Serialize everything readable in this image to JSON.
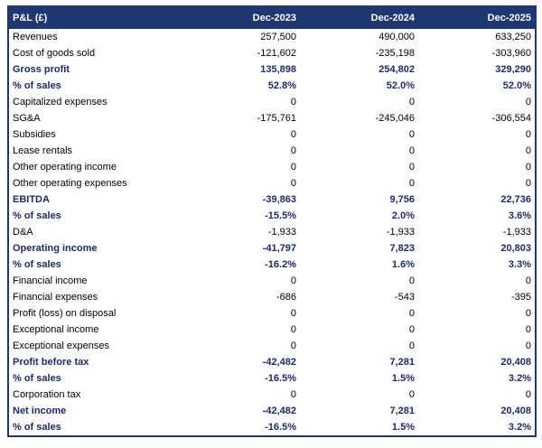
{
  "table": {
    "header": [
      "P&L (£)",
      "Dec-2023",
      "Dec-2024",
      "Dec-2025"
    ],
    "rows": [
      {
        "cells": [
          "Revenues",
          "257,500",
          "490,000",
          "633,250"
        ]
      },
      {
        "cells": [
          "Cost of goods sold",
          "-121,602",
          "-235,198",
          "-303,960"
        ]
      },
      {
        "cells": [
          "Gross profit",
          "135,898",
          "254,802",
          "329,290"
        ],
        "bold": true
      },
      {
        "cells": [
          "% of sales",
          "52.8%",
          "52.0%",
          "52.0%"
        ],
        "bold": true
      },
      {
        "cells": [
          "Capitalized expenses",
          "0",
          "0",
          "0"
        ]
      },
      {
        "cells": [
          "SG&A",
          "-175,761",
          "-245,046",
          "-306,554"
        ]
      },
      {
        "cells": [
          "Subsidies",
          "0",
          "0",
          "0"
        ]
      },
      {
        "cells": [
          "Lease rentals",
          "0",
          "0",
          "0"
        ]
      },
      {
        "cells": [
          "Other operating income",
          "0",
          "0",
          "0"
        ]
      },
      {
        "cells": [
          "Other operating expenses",
          "0",
          "0",
          "0"
        ]
      },
      {
        "cells": [
          "EBITDA",
          "-39,863",
          "9,756",
          "22,736"
        ],
        "bold": true
      },
      {
        "cells": [
          "% of sales",
          "-15.5%",
          "2.0%",
          "3.6%"
        ],
        "bold": true
      },
      {
        "cells": [
          "D&A",
          "-1,933",
          "-1,933",
          "-1,933"
        ]
      },
      {
        "cells": [
          "Operating income",
          "-41,797",
          "7,823",
          "20,803"
        ],
        "bold": true
      },
      {
        "cells": [
          "% of sales",
          "-16.2%",
          "1.6%",
          "3.3%"
        ],
        "bold": true
      },
      {
        "cells": [
          "Financial income",
          "0",
          "0",
          "0"
        ]
      },
      {
        "cells": [
          "Financial expenses",
          "-686",
          "-543",
          "-395"
        ]
      },
      {
        "cells": [
          "Profit (loss) on disposal",
          "0",
          "0",
          "0"
        ]
      },
      {
        "cells": [
          "Exceptional income",
          "0",
          "0",
          "0"
        ]
      },
      {
        "cells": [
          "Exceptional expenses",
          "0",
          "0",
          "0"
        ]
      },
      {
        "cells": [
          "Profit before tax",
          "-42,482",
          "7,281",
          "20,408"
        ],
        "bold": true
      },
      {
        "cells": [
          "% of sales",
          "-16.5%",
          "1.5%",
          "3.2%"
        ],
        "bold": true
      },
      {
        "cells": [
          "Corporation tax",
          "0",
          "0",
          "0"
        ]
      },
      {
        "cells": [
          "Net income",
          "-42,482",
          "7,281",
          "20,408"
        ],
        "bold": true
      },
      {
        "cells": [
          "% of sales",
          "-16.5%",
          "1.5%",
          "3.2%"
        ],
        "bold": true
      }
    ]
  }
}
